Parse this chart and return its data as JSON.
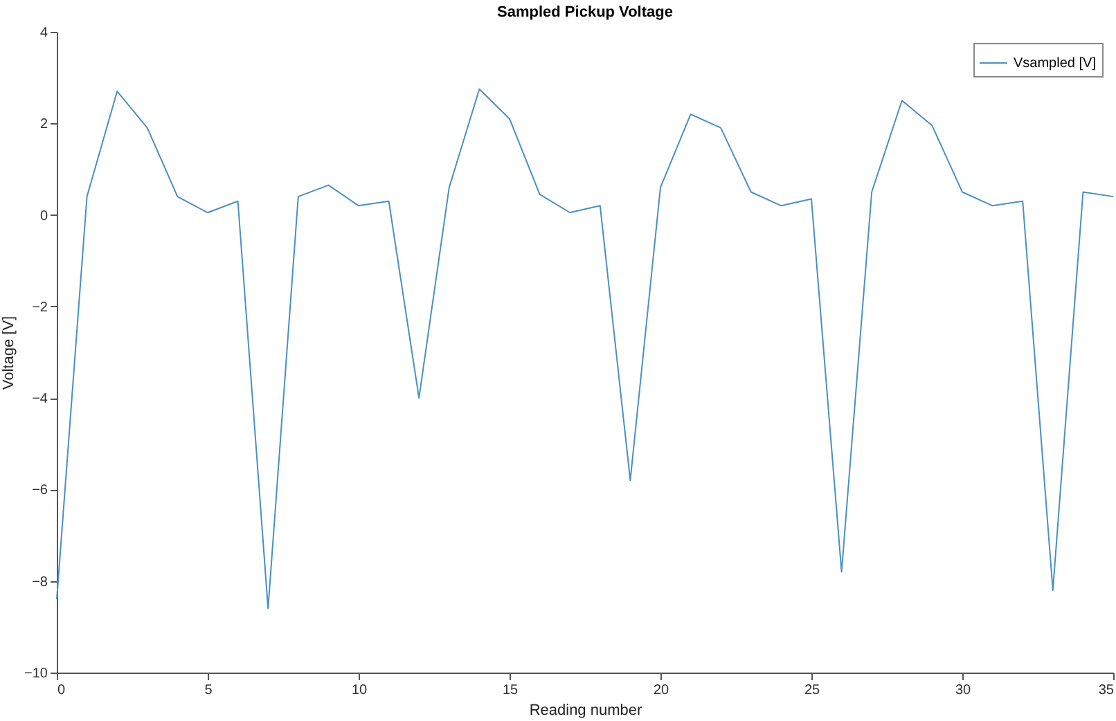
{
  "chart_data": {
    "type": "line",
    "title": "Sampled Pickup Voltage",
    "xlabel": "Reading number",
    "ylabel": "Voltage [V]",
    "x": [
      0,
      1,
      2,
      3,
      4,
      5,
      6,
      7,
      8,
      9,
      10,
      11,
      12,
      13,
      14,
      15,
      16,
      17,
      18,
      19,
      20,
      21,
      22,
      23,
      24,
      25,
      26,
      27,
      28,
      29,
      30,
      31,
      32,
      33,
      34,
      35
    ],
    "series": [
      {
        "name": "Vsampled [V]",
        "color": "#4a90c2",
        "values": [
          -8.4,
          0.4,
          2.7,
          1.9,
          0.4,
          0.05,
          0.3,
          -8.6,
          0.4,
          0.65,
          0.2,
          0.3,
          -4.0,
          0.6,
          2.75,
          2.1,
          0.45,
          0.05,
          0.2,
          -5.8,
          0.6,
          2.2,
          1.9,
          0.5,
          0.2,
          0.35,
          -7.8,
          0.5,
          2.5,
          1.95,
          0.5,
          0.2,
          0.3,
          -8.2,
          0.5,
          0.4
        ]
      }
    ],
    "xlim": [
      0,
      35
    ],
    "xticks": [
      0,
      5,
      10,
      15,
      20,
      25,
      30,
      35
    ],
    "ylim": [
      -10,
      4
    ],
    "yticks": [
      -10,
      -8,
      -6,
      -4,
      -2,
      0,
      2,
      4
    ],
    "grid": false,
    "legend": "top right",
    "marker": "none",
    "line_style": "solid"
  }
}
